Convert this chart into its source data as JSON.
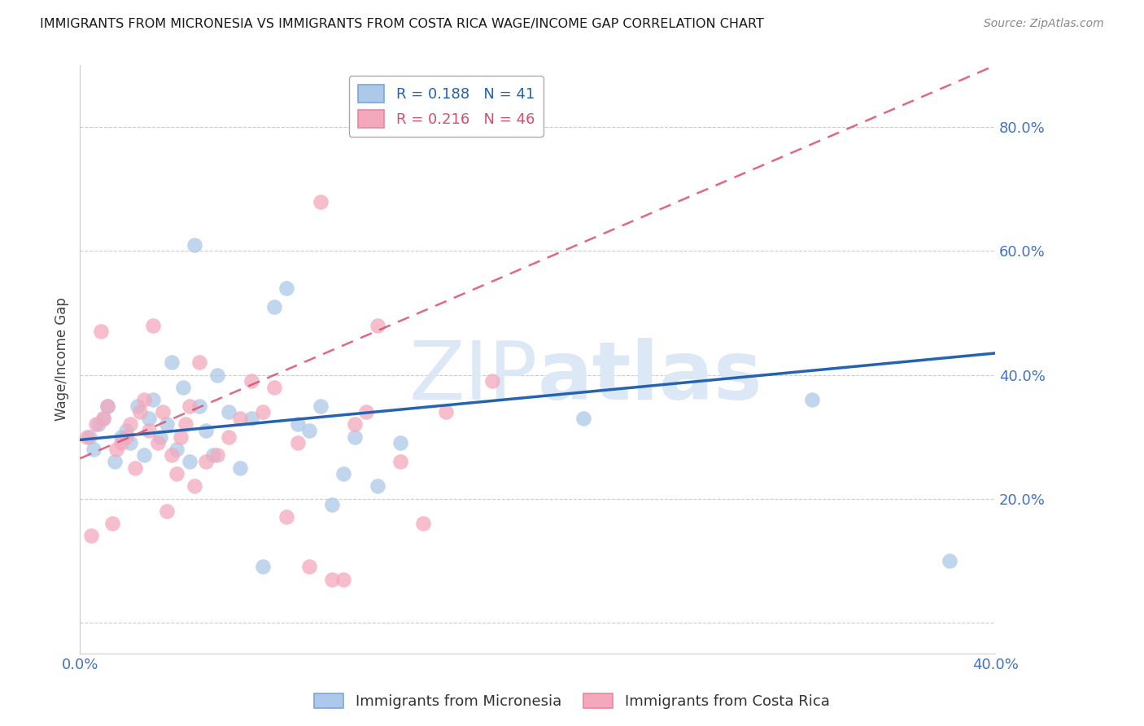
{
  "title": "IMMIGRANTS FROM MICRONESIA VS IMMIGRANTS FROM COSTA RICA WAGE/INCOME GAP CORRELATION CHART",
  "source": "Source: ZipAtlas.com",
  "ylabel": "Wage/Income Gap",
  "xlim": [
    0.0,
    0.4
  ],
  "ylim": [
    -0.05,
    0.9
  ],
  "yticks": [
    0.0,
    0.2,
    0.4,
    0.6,
    0.8
  ],
  "ytick_labels": [
    "",
    "20.0%",
    "40.0%",
    "60.0%",
    "80.0%"
  ],
  "xticks": [
    0.0,
    0.1,
    0.2,
    0.3,
    0.4
  ],
  "xtick_labels": [
    "0.0%",
    "",
    "",
    "",
    "40.0%"
  ],
  "micronesia_color": "#adc8e8",
  "costa_rica_color": "#f4a8bc",
  "micronesia_line_color": "#2563b0",
  "costa_rica_line_color": "#d94f6e",
  "legend_R_micro": "0.188",
  "legend_N_micro": "41",
  "legend_R_costa": "0.216",
  "legend_N_costa": "46",
  "micronesia_x": [
    0.004,
    0.006,
    0.008,
    0.01,
    0.012,
    0.015,
    0.018,
    0.02,
    0.022,
    0.025,
    0.028,
    0.03,
    0.032,
    0.035,
    0.038,
    0.04,
    0.042,
    0.045,
    0.048,
    0.05,
    0.052,
    0.055,
    0.058,
    0.06,
    0.065,
    0.07,
    0.075,
    0.08,
    0.085,
    0.09,
    0.095,
    0.1,
    0.105,
    0.11,
    0.115,
    0.12,
    0.13,
    0.14,
    0.22,
    0.32,
    0.38
  ],
  "micronesia_y": [
    0.3,
    0.28,
    0.32,
    0.33,
    0.35,
    0.26,
    0.3,
    0.31,
    0.29,
    0.35,
    0.27,
    0.33,
    0.36,
    0.3,
    0.32,
    0.42,
    0.28,
    0.38,
    0.26,
    0.61,
    0.35,
    0.31,
    0.27,
    0.4,
    0.34,
    0.25,
    0.33,
    0.09,
    0.51,
    0.54,
    0.32,
    0.31,
    0.35,
    0.19,
    0.24,
    0.3,
    0.22,
    0.29,
    0.33,
    0.36,
    0.1
  ],
  "costa_rica_x": [
    0.003,
    0.005,
    0.007,
    0.009,
    0.01,
    0.012,
    0.014,
    0.016,
    0.018,
    0.02,
    0.022,
    0.024,
    0.026,
    0.028,
    0.03,
    0.032,
    0.034,
    0.036,
    0.038,
    0.04,
    0.042,
    0.044,
    0.046,
    0.048,
    0.05,
    0.052,
    0.055,
    0.06,
    0.065,
    0.07,
    0.075,
    0.08,
    0.085,
    0.09,
    0.095,
    0.1,
    0.105,
    0.11,
    0.115,
    0.12,
    0.125,
    0.13,
    0.14,
    0.15,
    0.16,
    0.18
  ],
  "costa_rica_y": [
    0.3,
    0.14,
    0.32,
    0.47,
    0.33,
    0.35,
    0.16,
    0.28,
    0.29,
    0.3,
    0.32,
    0.25,
    0.34,
    0.36,
    0.31,
    0.48,
    0.29,
    0.34,
    0.18,
    0.27,
    0.24,
    0.3,
    0.32,
    0.35,
    0.22,
    0.42,
    0.26,
    0.27,
    0.3,
    0.33,
    0.39,
    0.34,
    0.38,
    0.17,
    0.29,
    0.09,
    0.68,
    0.07,
    0.07,
    0.32,
    0.34,
    0.48,
    0.26,
    0.16,
    0.34,
    0.39
  ],
  "background_color": "#ffffff",
  "grid_color": "#cccccc",
  "tick_color": "#4472c4",
  "watermark_zip": "ZIP",
  "watermark_atlas": "atlas",
  "watermark_color": "#dce8f5",
  "watermark_fontsize": 72
}
